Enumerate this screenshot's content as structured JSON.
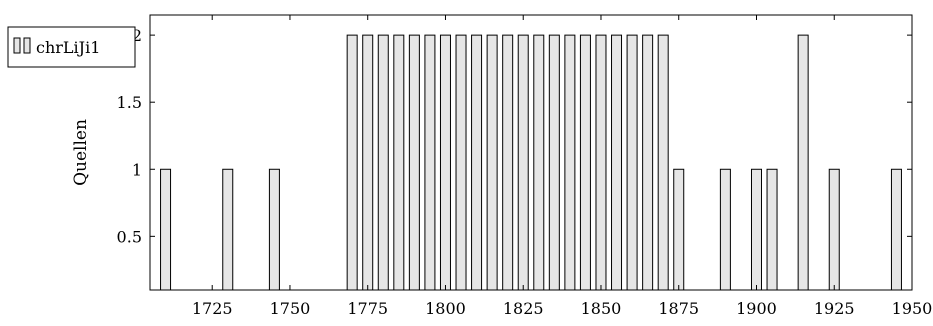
{
  "chart_data": {
    "type": "bar",
    "title": "",
    "xlabel": "",
    "ylabel": "Quellen",
    "xlim": [
      1705,
      1950
    ],
    "ylim": [
      0.1,
      2.15
    ],
    "xticks": [
      1725,
      1750,
      1775,
      1800,
      1825,
      1850,
      1875,
      1900,
      1925,
      1950
    ],
    "yticks": [
      0.5,
      1,
      1.5,
      2
    ],
    "ytick_labels": [
      "0.5",
      "1",
      "1.5",
      "2"
    ],
    "grid": false,
    "legend_position": "top-left",
    "series": [
      {
        "name": "chrLiJi1",
        "color": "#e6e6e6",
        "stroke": "#000000",
        "x": [
          1710,
          1730,
          1745,
          1770,
          1775,
          1780,
          1785,
          1790,
          1795,
          1800,
          1805,
          1810,
          1815,
          1820,
          1825,
          1830,
          1835,
          1840,
          1845,
          1850,
          1855,
          1860,
          1865,
          1870,
          1875,
          1890,
          1900,
          1905,
          1915,
          1925,
          1945
        ],
        "values": [
          1,
          1,
          1,
          2,
          2,
          2,
          2,
          2,
          2,
          2,
          2,
          2,
          2,
          2,
          2,
          2,
          2,
          2,
          2,
          2,
          2,
          2,
          2,
          2,
          1,
          1,
          1,
          1,
          2,
          1,
          1
        ]
      }
    ]
  }
}
